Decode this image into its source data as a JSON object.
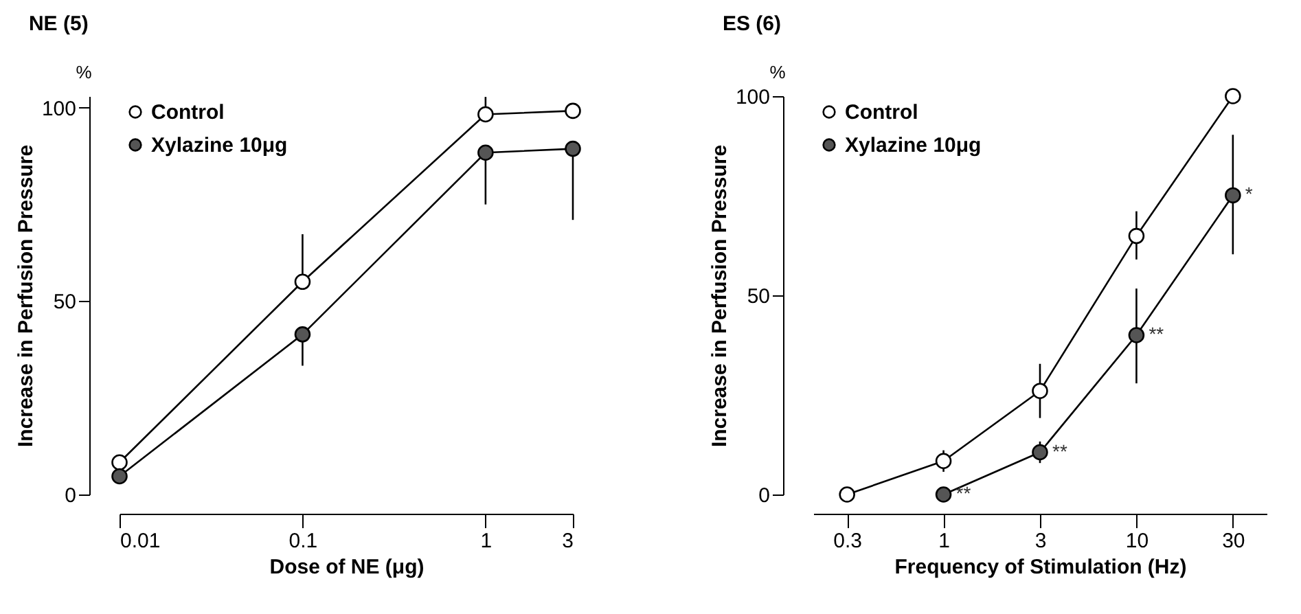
{
  "chart_data": [
    {
      "type": "line",
      "title": "NE (5)",
      "xlabel": "Dose of NE (μg)",
      "ylabel": "Increase in Perfusion Pressure",
      "annotations": [
        "%"
      ],
      "x": [
        0.01,
        0.1,
        1,
        3
      ],
      "log": "x",
      "xlim": [
        0.01,
        3
      ],
      "xticks": [
        0.01,
        0.1,
        1,
        3
      ],
      "ylim": [
        0,
        103
      ],
      "yticks": [
        0,
        50,
        100
      ],
      "grid": false,
      "legend": "top left",
      "marker": "circle",
      "line_style": "solid",
      "series": [
        {
          "name": "Control",
          "color": "#ffffff",
          "values": [
            8.3,
            55,
            98.3,
            99.2
          ],
          "errors": [
            null,
            [
              55,
              67.3
            ],
            [
              98.3,
              102.8
            ],
            null
          ]
        },
        {
          "name": "Xylazine 10μg",
          "color": "#555555",
          "values": [
            4.7,
            41.4,
            88.4,
            89.4
          ],
          "errors": [
            null,
            [
              33.3,
              41.4
            ],
            [
              75,
              88.4
            ],
            [
              71,
              89.4
            ]
          ]
        }
      ]
    },
    {
      "type": "line",
      "title": "ES (6)",
      "xlabel": "Frequency of Stimulation (Hz)",
      "ylabel": "Increase in Perfusion Pressure",
      "annotations": [
        "%",
        {
          "text": "**",
          "x": "1",
          "y": 0
        },
        {
          "text": "**",
          "x": "3",
          "y": 10.6
        },
        {
          "text": "**",
          "x": "10",
          "y": 40
        },
        {
          "text": "*",
          "x": "30",
          "y": 75.1
        }
      ],
      "categories": [
        "0.3",
        "1",
        "3",
        "10",
        "30"
      ],
      "ylim": [
        0,
        100
      ],
      "yticks": [
        0,
        50,
        100
      ],
      "grid": false,
      "legend": "top left",
      "marker": "circle",
      "line_style": "solid",
      "series": [
        {
          "name": "Control",
          "color": "#ffffff",
          "values": [
            0,
            8.4,
            26,
            64.9,
            100
          ],
          "errors": [
            null,
            [
              5.7,
              11.1
            ],
            [
              19.2,
              32.8
            ],
            [
              59,
              71.1
            ],
            null
          ]
        },
        {
          "name": "Xylazine 10μg",
          "color": "#555555",
          "values": [
            null,
            0,
            10.6,
            40,
            75.1
          ],
          "errors": [
            null,
            null,
            [
              7.9,
              13.3
            ],
            [
              27.9,
              51.7
            ],
            [
              60.3,
              90.3
            ]
          ]
        }
      ]
    }
  ]
}
